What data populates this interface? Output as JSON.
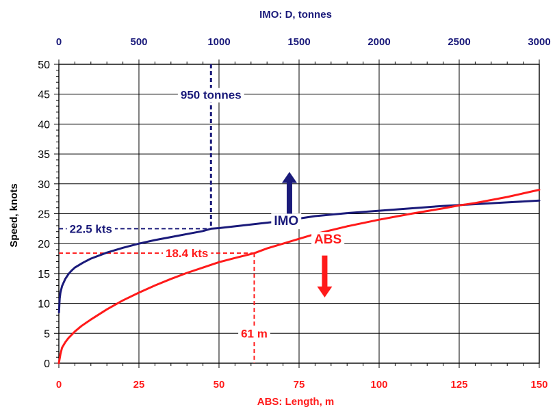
{
  "chart_data": {
    "type": "line",
    "top_axis": {
      "label": "IMO:  D,  tonnes",
      "range": [
        0,
        3000
      ],
      "ticks": [
        0,
        500,
        1000,
        1500,
        2000,
        2500,
        3000
      ],
      "color": "#1a1a7a"
    },
    "bottom_axis": {
      "label": "ABS: Length, m",
      "range": [
        0,
        150
      ],
      "ticks": [
        0,
        25,
        50,
        75,
        100,
        125,
        150
      ],
      "color": "#ff1a1a"
    },
    "y_axis": {
      "label": "Speed, knots",
      "range": [
        0,
        50
      ],
      "ticks": [
        0,
        5,
        10,
        15,
        20,
        25,
        30,
        35,
        40,
        45,
        50
      ]
    },
    "grid": true,
    "series": [
      {
        "name": "IMO",
        "x_axis": "top",
        "color": "#1a1a7a",
        "x": [
          1,
          5,
          10,
          20,
          40,
          60,
          80,
          100,
          150,
          200,
          300,
          400,
          500,
          600,
          700,
          800,
          900,
          950,
          1000,
          1200,
          1400,
          1600,
          1800,
          2000,
          2200,
          2400,
          2600,
          2800,
          3000
        ],
        "y": [
          8.5,
          10.8,
          11.8,
          12.9,
          14.1,
          14.9,
          15.5,
          16.0,
          16.8,
          17.5,
          18.5,
          19.3,
          20.0,
          20.6,
          21.1,
          21.6,
          22.1,
          22.5,
          22.6,
          23.2,
          23.8,
          24.6,
          25.1,
          25.5,
          25.9,
          26.3,
          26.6,
          26.9,
          27.2
        ]
      },
      {
        "name": "ABS",
        "x_axis": "bottom",
        "color": "#ff1a1a",
        "x": [
          0,
          0.5,
          1,
          2,
          3,
          5,
          7,
          10,
          15,
          20,
          25,
          30,
          35,
          40,
          45,
          50,
          55,
          61,
          65,
          70,
          75,
          80,
          90,
          100,
          110,
          120,
          125,
          130,
          140,
          150
        ],
        "y": [
          0,
          1.5,
          2.6,
          3.5,
          4.2,
          5.3,
          6.2,
          7.3,
          9.0,
          10.5,
          11.8,
          13.0,
          14.1,
          15.1,
          16.0,
          16.9,
          17.6,
          18.4,
          19.2,
          20.0,
          20.8,
          21.6,
          22.9,
          24.0,
          25.0,
          25.9,
          26.4,
          26.8,
          27.8,
          29.0
        ]
      }
    ],
    "annotations": {
      "imo_point": {
        "x": 950,
        "y": 22.5,
        "x_label": "950 tonnes",
        "y_label": "22.5 kts",
        "color": "#1a1a7a"
      },
      "abs_point": {
        "x": 61,
        "y": 18.4,
        "x_label": "61 m",
        "y_label": "18.4 kts",
        "color": "#ff1a1a"
      },
      "imo_arrow": {
        "direction": "up",
        "x": 72,
        "y_from": 25,
        "y_to": 32,
        "color": "#1a1a7a"
      },
      "abs_arrow": {
        "direction": "down",
        "x": 83,
        "y_from": 18,
        "y_to": 11,
        "color": "#ff1a1a"
      },
      "series_labels": [
        {
          "text": "IMO",
          "x": 71,
          "y": 23.9,
          "color": "#1a1a7a"
        },
        {
          "text": "ABS",
          "x": 84,
          "y": 20.8,
          "color": "#ff1a1a"
        }
      ]
    }
  }
}
